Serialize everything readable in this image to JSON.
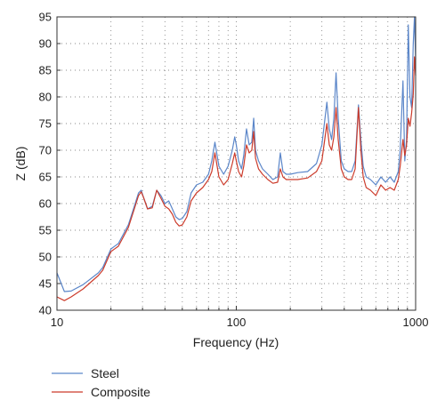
{
  "chart_data": {
    "type": "line",
    "xlabel": "Frequency (Hz)",
    "ylabel": "Z (dB)",
    "xscale": "log",
    "xlim": [
      10,
      1000
    ],
    "ylim": [
      40,
      95
    ],
    "x_ticks": [
      10,
      100,
      1000
    ],
    "x_tick_labels": [
      "10",
      "100",
      "1000"
    ],
    "y_ticks": [
      40,
      45,
      50,
      55,
      60,
      65,
      70,
      75,
      80,
      85,
      90,
      95
    ],
    "y_tick_labels": [
      "40",
      "45",
      "50",
      "55",
      "60",
      "65",
      "70",
      "75",
      "80",
      "85",
      "90",
      "95"
    ],
    "grid": "dotted",
    "legend_position": "bottom-left, below plot",
    "series": [
      {
        "name": "Steel",
        "color": "#5b86c9",
        "points": [
          [
            10,
            47
          ],
          [
            11,
            43.5
          ],
          [
            12,
            43.6
          ],
          [
            14,
            44.8
          ],
          [
            17,
            47
          ],
          [
            18,
            48
          ],
          [
            20,
            51.5
          ],
          [
            22,
            52.5
          ],
          [
            25,
            56
          ],
          [
            27,
            59.5
          ],
          [
            28.5,
            62
          ],
          [
            29.5,
            62.5
          ],
          [
            30.5,
            61
          ],
          [
            32,
            59
          ],
          [
            34,
            59.5
          ],
          [
            36,
            62.5
          ],
          [
            38,
            61.5
          ],
          [
            40,
            60
          ],
          [
            42,
            60.5
          ],
          [
            44,
            59
          ],
          [
            46,
            57.5
          ],
          [
            48,
            57
          ],
          [
            50,
            57.2
          ],
          [
            53,
            58.5
          ],
          [
            56,
            62
          ],
          [
            60,
            63.5
          ],
          [
            65,
            64
          ],
          [
            70,
            65.5
          ],
          [
            73,
            68
          ],
          [
            76,
            71.5
          ],
          [
            80,
            67
          ],
          [
            85,
            65.5
          ],
          [
            90,
            67
          ],
          [
            95,
            70
          ],
          [
            98,
            72.5
          ],
          [
            100,
            71
          ],
          [
            103,
            68
          ],
          [
            107,
            66.5
          ],
          [
            110,
            69
          ],
          [
            114,
            74
          ],
          [
            118,
            71
          ],
          [
            122,
            71.5
          ],
          [
            125,
            76
          ],
          [
            128,
            70
          ],
          [
            133,
            68
          ],
          [
            140,
            66.5
          ],
          [
            150,
            65.5
          ],
          [
            160,
            64.5
          ],
          [
            170,
            65
          ],
          [
            176,
            69.5
          ],
          [
            182,
            66
          ],
          [
            190,
            65.5
          ],
          [
            200,
            65.5
          ],
          [
            220,
            65.8
          ],
          [
            250,
            66
          ],
          [
            280,
            67.5
          ],
          [
            300,
            71
          ],
          [
            320,
            79
          ],
          [
            330,
            74
          ],
          [
            340,
            72
          ],
          [
            350,
            76
          ],
          [
            360,
            84.5
          ],
          [
            370,
            76
          ],
          [
            385,
            68
          ],
          [
            400,
            66.5
          ],
          [
            420,
            66
          ],
          [
            440,
            66
          ],
          [
            460,
            68
          ],
          [
            480,
            78.5
          ],
          [
            495,
            72
          ],
          [
            510,
            67
          ],
          [
            530,
            65
          ],
          [
            560,
            64.5
          ],
          [
            600,
            63.5
          ],
          [
            640,
            65
          ],
          [
            680,
            64
          ],
          [
            720,
            65
          ],
          [
            760,
            64
          ],
          [
            800,
            66
          ],
          [
            820,
            70
          ],
          [
            850,
            83
          ],
          [
            870,
            68
          ],
          [
            890,
            72
          ],
          [
            910,
            93.5
          ],
          [
            930,
            80
          ],
          [
            950,
            78
          ],
          [
            970,
            90
          ],
          [
            985,
            95
          ],
          [
            1000,
            87
          ]
        ]
      },
      {
        "name": "Composite",
        "color": "#cc3b2b",
        "points": [
          [
            10,
            42.5
          ],
          [
            11,
            41.8
          ],
          [
            12,
            42.5
          ],
          [
            14,
            44
          ],
          [
            17,
            46.5
          ],
          [
            18,
            47.5
          ],
          [
            20,
            51
          ],
          [
            22,
            52
          ],
          [
            25,
            55.5
          ],
          [
            27,
            59
          ],
          [
            28.5,
            61.5
          ],
          [
            29.5,
            62.2
          ],
          [
            30.5,
            61
          ],
          [
            32,
            59
          ],
          [
            34,
            59.2
          ],
          [
            36,
            62.5
          ],
          [
            38,
            61
          ],
          [
            40,
            59.5
          ],
          [
            42,
            59
          ],
          [
            44,
            58
          ],
          [
            46,
            56.5
          ],
          [
            48,
            55.8
          ],
          [
            50,
            56
          ],
          [
            53,
            57.5
          ],
          [
            56,
            60.5
          ],
          [
            60,
            62
          ],
          [
            65,
            63
          ],
          [
            70,
            64.5
          ],
          [
            73,
            66
          ],
          [
            76,
            69.5
          ],
          [
            80,
            65
          ],
          [
            85,
            63.5
          ],
          [
            90,
            64.5
          ],
          [
            95,
            67.5
          ],
          [
            98,
            69.5
          ],
          [
            100,
            68
          ],
          [
            103,
            66
          ],
          [
            107,
            65
          ],
          [
            110,
            67
          ],
          [
            114,
            71
          ],
          [
            118,
            69.5
          ],
          [
            122,
            70
          ],
          [
            125,
            73.5
          ],
          [
            128,
            68.5
          ],
          [
            133,
            66.5
          ],
          [
            140,
            65.5
          ],
          [
            150,
            64.5
          ],
          [
            160,
            63.8
          ],
          [
            170,
            64
          ],
          [
            176,
            66.5
          ],
          [
            182,
            65
          ],
          [
            190,
            64.5
          ],
          [
            200,
            64.5
          ],
          [
            220,
            64.5
          ],
          [
            250,
            64.8
          ],
          [
            280,
            66
          ],
          [
            300,
            68
          ],
          [
            320,
            75
          ],
          [
            330,
            71
          ],
          [
            340,
            70
          ],
          [
            350,
            72.5
          ],
          [
            360,
            78
          ],
          [
            370,
            72
          ],
          [
            385,
            66.5
          ],
          [
            400,
            65
          ],
          [
            420,
            64.5
          ],
          [
            440,
            64.5
          ],
          [
            460,
            66.5
          ],
          [
            480,
            78
          ],
          [
            495,
            70
          ],
          [
            510,
            65
          ],
          [
            530,
            63
          ],
          [
            560,
            62.5
          ],
          [
            600,
            61.5
          ],
          [
            640,
            63.5
          ],
          [
            680,
            62.5
          ],
          [
            720,
            63
          ],
          [
            760,
            62.5
          ],
          [
            800,
            64.5
          ],
          [
            820,
            67
          ],
          [
            850,
            72
          ],
          [
            870,
            69
          ],
          [
            890,
            71
          ],
          [
            910,
            76
          ],
          [
            930,
            74.5
          ],
          [
            950,
            77
          ],
          [
            970,
            80.5
          ],
          [
            985,
            87.5
          ],
          [
            1000,
            84
          ]
        ]
      }
    ]
  }
}
